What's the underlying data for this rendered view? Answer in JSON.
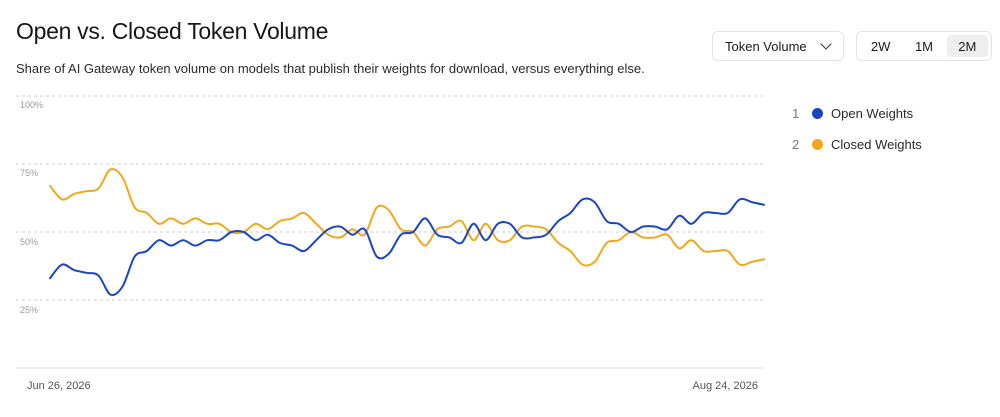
{
  "header": {
    "title": "Open vs. Closed Token Volume",
    "subtitle": "Share of AI Gateway token volume on models that publish their weights for download, versus everything else."
  },
  "controls": {
    "metric_dropdown": "Token Volume",
    "ranges": [
      {
        "label": "2W",
        "active": false
      },
      {
        "label": "1M",
        "active": false
      },
      {
        "label": "2M",
        "active": true
      }
    ]
  },
  "chart_data": {
    "type": "line",
    "x_range": [
      "Jun 26, 2026",
      "Aug 24, 2026"
    ],
    "x_tick_labels": [
      "Jun 26, 2026",
      "Aug 24, 2026"
    ],
    "y_ticks": [
      {
        "value": 100,
        "label": "100%"
      },
      {
        "value": 75,
        "label": "75%"
      },
      {
        "value": 50,
        "label": "50%"
      },
      {
        "value": 25,
        "label": "25%"
      }
    ],
    "ylim": [
      0,
      100
    ],
    "grid": true,
    "legend_position": "right",
    "series": [
      {
        "name": "Open Weights",
        "index": "1",
        "color": "#1a45c4",
        "values": [
          33,
          38,
          36,
          35,
          34,
          27,
          30,
          41,
          43,
          47,
          45,
          47,
          45,
          47,
          47,
          50,
          50,
          47,
          49,
          46,
          45,
          43,
          47,
          51,
          52,
          49,
          51,
          41,
          42,
          49,
          50,
          55,
          49,
          48,
          46,
          53,
          47,
          53,
          53,
          48,
          48,
          49,
          54,
          57,
          62,
          61,
          54,
          53,
          50,
          52,
          52,
          51,
          56,
          53,
          57,
          57,
          57,
          62,
          61,
          60
        ]
      },
      {
        "name": "Closed Weights",
        "index": "2",
        "color": "#f0a81c",
        "values": [
          67,
          62,
          64,
          65,
          66,
          73,
          70,
          59,
          57,
          53,
          55,
          53,
          55,
          53,
          53,
          50,
          50,
          53,
          51,
          54,
          55,
          57,
          53,
          49,
          48,
          51,
          49,
          59,
          58,
          51,
          50,
          45,
          51,
          52,
          54,
          47,
          53,
          47,
          47,
          52,
          52,
          51,
          46,
          43,
          38,
          39,
          46,
          47,
          50,
          48,
          48,
          49,
          44,
          47,
          43,
          43,
          43,
          38,
          39,
          40
        ]
      }
    ]
  }
}
